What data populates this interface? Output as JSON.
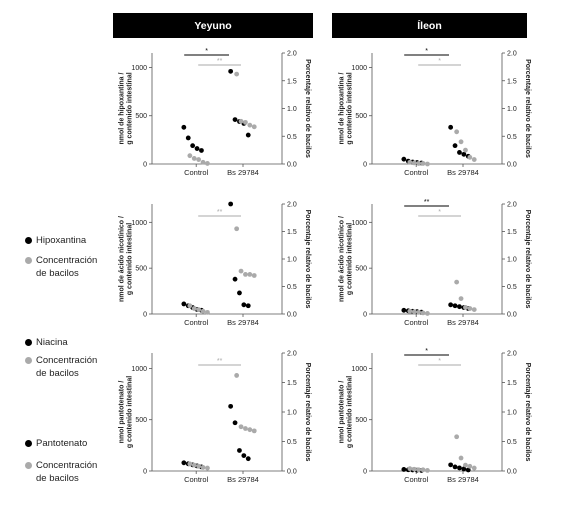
{
  "column_headers": [
    "Yeyuno",
    "Íleon"
  ],
  "legend": [
    {
      "label": "Hipoxantina",
      "color": "#000000"
    },
    {
      "label": "Concentración de bacilos",
      "color": "#aaaaaa"
    },
    {
      "label": "Niacina",
      "color": "#000000"
    },
    {
      "label": "Concentración de bacilos",
      "color": "#aaaaaa"
    },
    {
      "label": "Pantotenato",
      "color": "#000000"
    },
    {
      "label": "Concentración de bacilos",
      "color": "#aaaaaa"
    }
  ],
  "chart_data": [
    {
      "type": "scatter",
      "panel": "Yeyuno - Hipoxantina",
      "ylabel": "nmol de hipoxantina / g contenido intestinal",
      "y2label": "Porcentaje relativo de bacilos",
      "categories": [
        "Control",
        "Bs 29784"
      ],
      "yticks": [
        "0",
        "500",
        "1000"
      ],
      "y2ticks": [
        "0.0",
        "0.5",
        "1.0",
        "1.5",
        "2.0"
      ],
      "ylim": [
        0,
        1150
      ],
      "y2lim": [
        0,
        2.0
      ],
      "series": [
        {
          "color": "#000000",
          "axis": "left",
          "points": [
            {
              "x": "Control",
              "y": 380
            },
            {
              "x": "Control",
              "y": 270
            },
            {
              "x": "Control",
              "y": 190
            },
            {
              "x": "Control",
              "y": 160
            },
            {
              "x": "Control",
              "y": 140
            },
            {
              "x": "Bs 29784",
              "y": 960
            },
            {
              "x": "Bs 29784",
              "y": 460
            },
            {
              "x": "Bs 29784",
              "y": 440
            },
            {
              "x": "Bs 29784",
              "y": 420
            },
            {
              "x": "Bs 29784",
              "y": 300
            }
          ]
        },
        {
          "color": "#aaaaaa",
          "axis": "right",
          "points": [
            {
              "x": "Control",
              "y": 0.15
            },
            {
              "x": "Control",
              "y": 0.1
            },
            {
              "x": "Control",
              "y": 0.08
            },
            {
              "x": "Control",
              "y": 0.03
            },
            {
              "x": "Control",
              "y": 0.01
            },
            {
              "x": "Bs 29784",
              "y": 1.62
            },
            {
              "x": "Bs 29784",
              "y": 0.77
            },
            {
              "x": "Bs 29784",
              "y": 0.75
            },
            {
              "x": "Bs 29784",
              "y": 0.7
            },
            {
              "x": "Bs 29784",
              "y": 0.67
            }
          ]
        }
      ],
      "brackets": [
        {
          "label": "*",
          "row": 0,
          "color": "#000000"
        },
        {
          "label": "**",
          "row": 1,
          "color": "#aaaaaa"
        }
      ]
    },
    {
      "type": "scatter",
      "panel": "Íleon - Hipoxantina",
      "ylabel": "nmol de hipoxantina / g contenido intestinal",
      "y2label": "Porcentaje relativo de bacilos",
      "categories": [
        "Control",
        "Bs 29784"
      ],
      "yticks": [
        "0",
        "500",
        "1000"
      ],
      "y2ticks": [
        "0.0",
        "0.5",
        "1.0",
        "1.5",
        "2.0"
      ],
      "ylim": [
        0,
        1150
      ],
      "y2lim": [
        0,
        2.0
      ],
      "series": [
        {
          "color": "#000000",
          "axis": "left",
          "points": [
            {
              "x": "Control",
              "y": 50
            },
            {
              "x": "Control",
              "y": 30
            },
            {
              "x": "Control",
              "y": 20
            },
            {
              "x": "Control",
              "y": 15
            },
            {
              "x": "Control",
              "y": 10
            },
            {
              "x": "Bs 29784",
              "y": 380
            },
            {
              "x": "Bs 29784",
              "y": 190
            },
            {
              "x": "Bs 29784",
              "y": 120
            },
            {
              "x": "Bs 29784",
              "y": 100
            },
            {
              "x": "Bs 29784",
              "y": 80
            }
          ]
        },
        {
          "color": "#aaaaaa",
          "axis": "right",
          "points": [
            {
              "x": "Control",
              "y": 0.03
            },
            {
              "x": "Control",
              "y": 0.02
            },
            {
              "x": "Control",
              "y": 0.01
            },
            {
              "x": "Control",
              "y": 0.01
            },
            {
              "x": "Control",
              "y": 0.0
            },
            {
              "x": "Bs 29784",
              "y": 0.58
            },
            {
              "x": "Bs 29784",
              "y": 0.4
            },
            {
              "x": "Bs 29784",
              "y": 0.25
            },
            {
              "x": "Bs 29784",
              "y": 0.12
            },
            {
              "x": "Bs 29784",
              "y": 0.08
            }
          ]
        }
      ],
      "brackets": [
        {
          "label": "*",
          "row": 0,
          "color": "#000000"
        },
        {
          "label": "*",
          "row": 1,
          "color": "#aaaaaa"
        }
      ]
    },
    {
      "type": "scatter",
      "panel": "Yeyuno - Niacina",
      "ylabel": "nmol de ácido nicotínico / g contenido intestinal",
      "y2label": "Porcentaje relativo de bacilos",
      "categories": [
        "Control",
        "Bs 29784"
      ],
      "yticks": [
        "0",
        "500",
        "1000"
      ],
      "y2ticks": [
        "0.0",
        "0.5",
        "1.0",
        "1.5",
        "2.0"
      ],
      "ylim": [
        0,
        1200
      ],
      "y2lim": [
        0,
        2.0
      ],
      "series": [
        {
          "color": "#000000",
          "axis": "left",
          "points": [
            {
              "x": "Control",
              "y": 110
            },
            {
              "x": "Control",
              "y": 90
            },
            {
              "x": "Control",
              "y": 70
            },
            {
              "x": "Control",
              "y": 50
            },
            {
              "x": "Control",
              "y": 40
            },
            {
              "x": "Bs 29784",
              "y": 1200
            },
            {
              "x": "Bs 29784",
              "y": 380
            },
            {
              "x": "Bs 29784",
              "y": 230
            },
            {
              "x": "Bs 29784",
              "y": 100
            },
            {
              "x": "Bs 29784",
              "y": 90
            }
          ]
        },
        {
          "color": "#aaaaaa",
          "axis": "right",
          "points": [
            {
              "x": "Control",
              "y": 0.15
            },
            {
              "x": "Control",
              "y": 0.1
            },
            {
              "x": "Control",
              "y": 0.08
            },
            {
              "x": "Control",
              "y": 0.05
            },
            {
              "x": "Control",
              "y": 0.03
            },
            {
              "x": "Bs 29784",
              "y": 1.55
            },
            {
              "x": "Bs 29784",
              "y": 0.78
            },
            {
              "x": "Bs 29784",
              "y": 0.72
            },
            {
              "x": "Bs 29784",
              "y": 0.72
            },
            {
              "x": "Bs 29784",
              "y": 0.7
            }
          ]
        }
      ],
      "brackets": [
        {
          "label": "**",
          "row": 1,
          "color": "#aaaaaa"
        }
      ]
    },
    {
      "type": "scatter",
      "panel": "Íleon - Niacina",
      "ylabel": "nmol de ácido nicotínico / g contenido intestinal",
      "y2label": "Porcentaje relativo de bacilos",
      "categories": [
        "Control",
        "Bs 29784"
      ],
      "yticks": [
        "0",
        "500",
        "1000"
      ],
      "y2ticks": [
        "0.0",
        "0.5",
        "1.0",
        "1.5",
        "2.0"
      ],
      "ylim": [
        0,
        1200
      ],
      "y2lim": [
        0,
        2.0
      ],
      "series": [
        {
          "color": "#000000",
          "axis": "left",
          "points": [
            {
              "x": "Control",
              "y": 40
            },
            {
              "x": "Control",
              "y": 35
            },
            {
              "x": "Control",
              "y": 30
            },
            {
              "x": "Control",
              "y": 25
            },
            {
              "x": "Control",
              "y": 20
            },
            {
              "x": "Bs 29784",
              "y": 100
            },
            {
              "x": "Bs 29784",
              "y": 90
            },
            {
              "x": "Bs 29784",
              "y": 80
            },
            {
              "x": "Bs 29784",
              "y": 70
            },
            {
              "x": "Bs 29784",
              "y": 60
            }
          ]
        },
        {
          "color": "#aaaaaa",
          "axis": "right",
          "points": [
            {
              "x": "Control",
              "y": 0.05
            },
            {
              "x": "Control",
              "y": 0.04
            },
            {
              "x": "Control",
              "y": 0.03
            },
            {
              "x": "Control",
              "y": 0.02
            },
            {
              "x": "Control",
              "y": 0.01
            },
            {
              "x": "Bs 29784",
              "y": 0.58
            },
            {
              "x": "Bs 29784",
              "y": 0.28
            },
            {
              "x": "Bs 29784",
              "y": 0.12
            },
            {
              "x": "Bs 29784",
              "y": 0.1
            },
            {
              "x": "Bs 29784",
              "y": 0.08
            }
          ]
        }
      ],
      "brackets": [
        {
          "label": "**",
          "row": 0,
          "color": "#000000"
        },
        {
          "label": "*",
          "row": 1,
          "color": "#aaaaaa"
        }
      ]
    },
    {
      "type": "scatter",
      "panel": "Yeyuno - Pantotenato",
      "ylabel": "nmol pantotenato / g contenido intestinal",
      "y2label": "Porcentaje relativo de bacilos",
      "categories": [
        "Control",
        "Bs 29784"
      ],
      "yticks": [
        "0",
        "500",
        "1000"
      ],
      "y2ticks": [
        "0.0",
        "0.5",
        "1.0",
        "1.5",
        "2.0"
      ],
      "ylim": [
        0,
        1150
      ],
      "y2lim": [
        0,
        2.0
      ],
      "series": [
        {
          "color": "#000000",
          "axis": "left",
          "points": [
            {
              "x": "Control",
              "y": 80
            },
            {
              "x": "Control",
              "y": 70
            },
            {
              "x": "Control",
              "y": 60
            },
            {
              "x": "Control",
              "y": 50
            },
            {
              "x": "Control",
              "y": 40
            },
            {
              "x": "Bs 29784",
              "y": 630
            },
            {
              "x": "Bs 29784",
              "y": 470
            },
            {
              "x": "Bs 29784",
              "y": 200
            },
            {
              "x": "Bs 29784",
              "y": 150
            },
            {
              "x": "Bs 29784",
              "y": 120
            }
          ]
        },
        {
          "color": "#aaaaaa",
          "axis": "right",
          "points": [
            {
              "x": "Control",
              "y": 0.12
            },
            {
              "x": "Control",
              "y": 0.1
            },
            {
              "x": "Control",
              "y": 0.08
            },
            {
              "x": "Control",
              "y": 0.06
            },
            {
              "x": "Control",
              "y": 0.05
            },
            {
              "x": "Bs 29784",
              "y": 1.62
            },
            {
              "x": "Bs 29784",
              "y": 0.75
            },
            {
              "x": "Bs 29784",
              "y": 0.72
            },
            {
              "x": "Bs 29784",
              "y": 0.7
            },
            {
              "x": "Bs 29784",
              "y": 0.68
            }
          ]
        }
      ],
      "brackets": [
        {
          "label": "**",
          "row": 1,
          "color": "#aaaaaa"
        }
      ]
    },
    {
      "type": "scatter",
      "panel": "Íleon - Pantotenato",
      "ylabel": "nmol pantotenato / g contenido intestinal",
      "y2label": "Porcentaje relativo de bacilos",
      "categories": [
        "Control",
        "Bs 29784"
      ],
      "yticks": [
        "0",
        "500",
        "1000"
      ],
      "y2ticks": [
        "0.0",
        "0.5",
        "1.0",
        "1.5",
        "2.0"
      ],
      "ylim": [
        0,
        1150
      ],
      "y2lim": [
        0,
        2.0
      ],
      "series": [
        {
          "color": "#000000",
          "axis": "left",
          "points": [
            {
              "x": "Control",
              "y": 15
            },
            {
              "x": "Control",
              "y": 12
            },
            {
              "x": "Control",
              "y": 10
            },
            {
              "x": "Control",
              "y": 8
            },
            {
              "x": "Control",
              "y": 5
            },
            {
              "x": "Bs 29784",
              "y": 60
            },
            {
              "x": "Bs 29784",
              "y": 40
            },
            {
              "x": "Bs 29784",
              "y": 30
            },
            {
              "x": "Bs 29784",
              "y": 20
            },
            {
              "x": "Bs 29784",
              "y": 10
            }
          ]
        },
        {
          "color": "#aaaaaa",
          "axis": "right",
          "points": [
            {
              "x": "Control",
              "y": 0.04
            },
            {
              "x": "Control",
              "y": 0.03
            },
            {
              "x": "Control",
              "y": 0.02
            },
            {
              "x": "Control",
              "y": 0.02
            },
            {
              "x": "Control",
              "y": 0.01
            },
            {
              "x": "Bs 29784",
              "y": 0.58
            },
            {
              "x": "Bs 29784",
              "y": 0.22
            },
            {
              "x": "Bs 29784",
              "y": 0.1
            },
            {
              "x": "Bs 29784",
              "y": 0.08
            },
            {
              "x": "Bs 29784",
              "y": 0.05
            }
          ]
        }
      ],
      "brackets": [
        {
          "label": "*",
          "row": 0,
          "color": "#000000"
        },
        {
          "label": "*",
          "row": 1,
          "color": "#aaaaaa"
        }
      ]
    }
  ]
}
